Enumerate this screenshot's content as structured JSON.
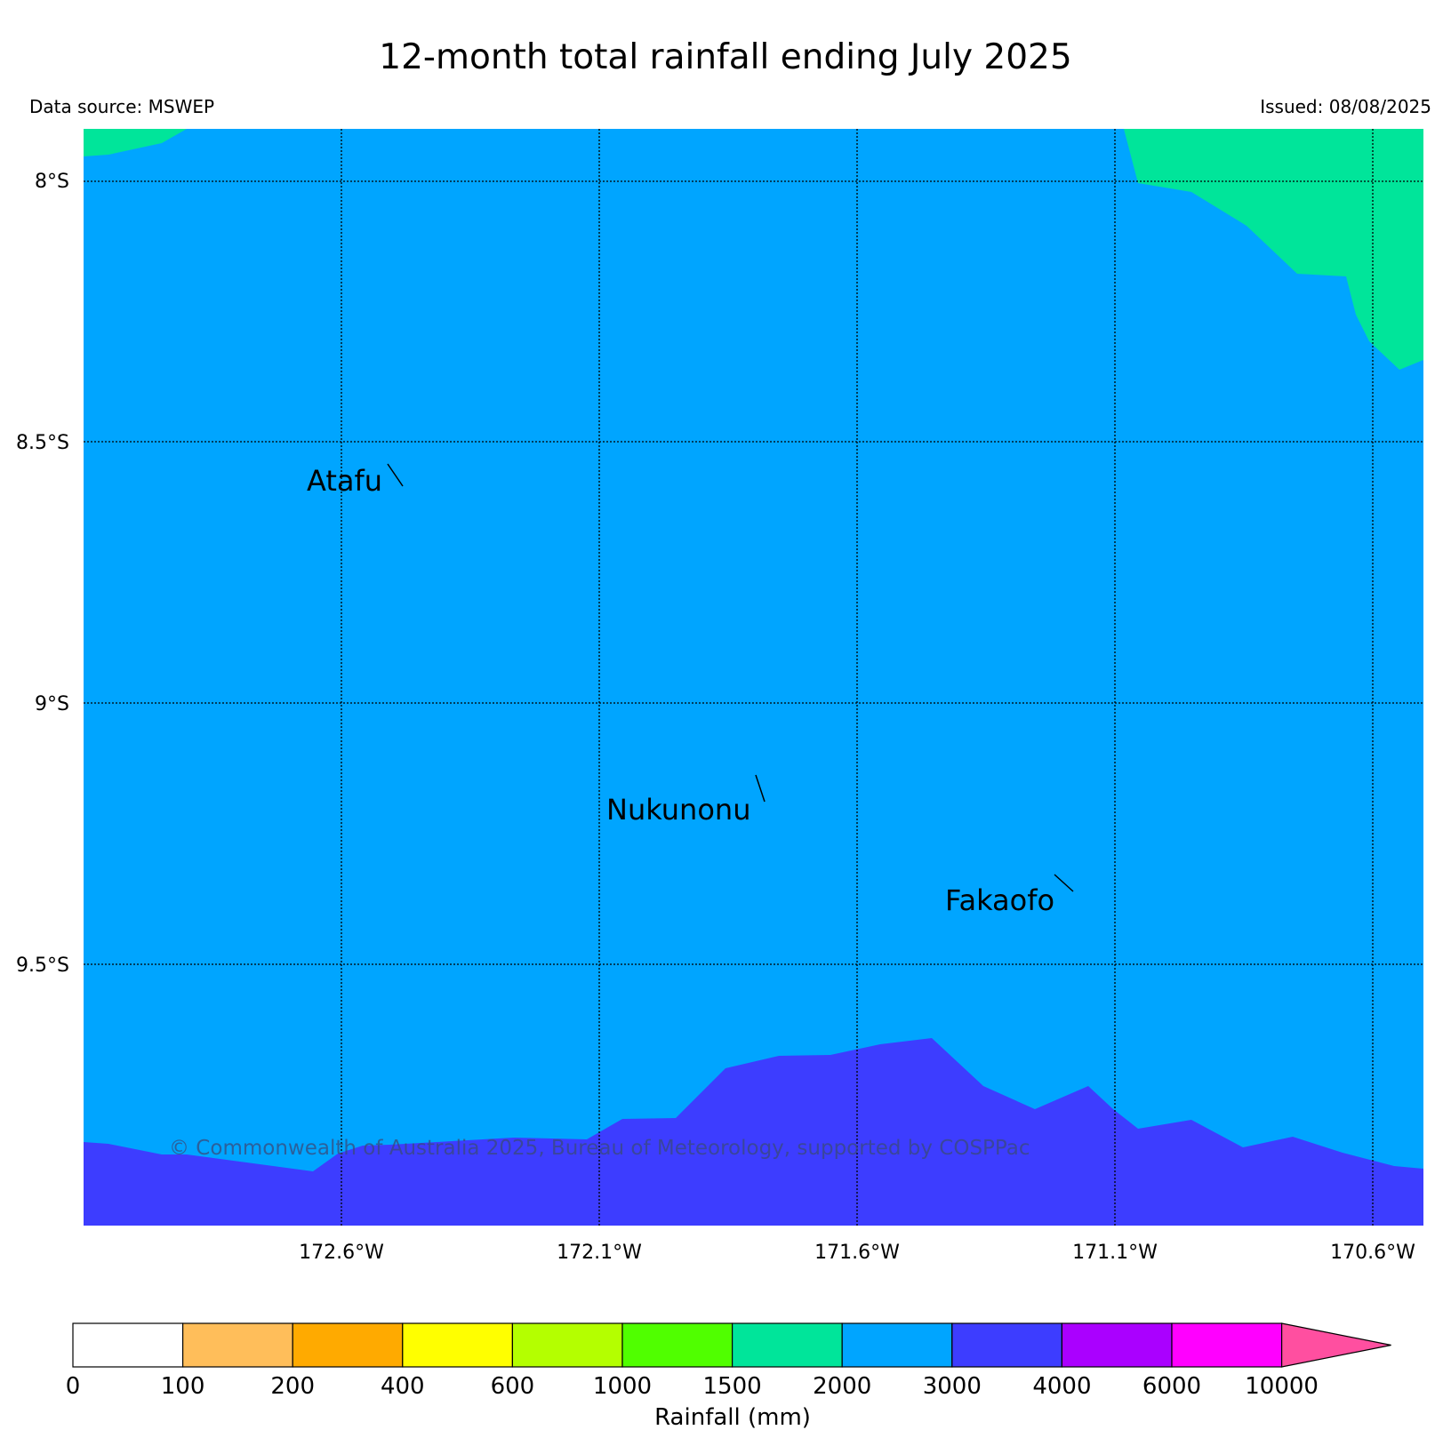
{
  "title": "12-month total rainfall ending July 2025",
  "source": "Data source: MSWEP",
  "issued": "Issued: 08/08/2025",
  "copyright": "© Commonwealth of Australia 2025, Bureau of Meteorology, supported by COSPPac",
  "lat_labels": [
    "8°S",
    "8.5°S",
    "9°S",
    "9.5°S"
  ],
  "lon_labels": [
    "172.6°W",
    "172.1°W",
    "171.6°W",
    "171.1°W",
    "170.6°W"
  ],
  "places": [
    {
      "name": "Atafu",
      "lon": -172.51,
      "lat": -8.56
    },
    {
      "name": "Nukunonu",
      "lon": -171.79,
      "lat": -9.18
    },
    {
      "name": "Fakaofo",
      "lon": -171.22,
      "lat": -9.37
    }
  ],
  "colors": {
    "fill_2000_3000": "#00a5ff",
    "fill_1500_2000": "#00e59a",
    "fill_3000_4000": "#3d3dff"
  },
  "colorbar": {
    "label": "Rainfall (mm)",
    "ticks": [
      "0",
      "100",
      "200",
      "400",
      "600",
      "1000",
      "1500",
      "2000",
      "3000",
      "4000",
      "6000",
      "10000"
    ],
    "colors": [
      "#ffffff",
      "#ffbe5a",
      "#ffaa00",
      "#ffff00",
      "#b4ff00",
      "#50ff00",
      "#00e59a",
      "#00a5ff",
      "#3d3dff",
      "#aa00ff",
      "#ff00ff",
      "#ff4fa0"
    ],
    "extend": "max"
  }
}
